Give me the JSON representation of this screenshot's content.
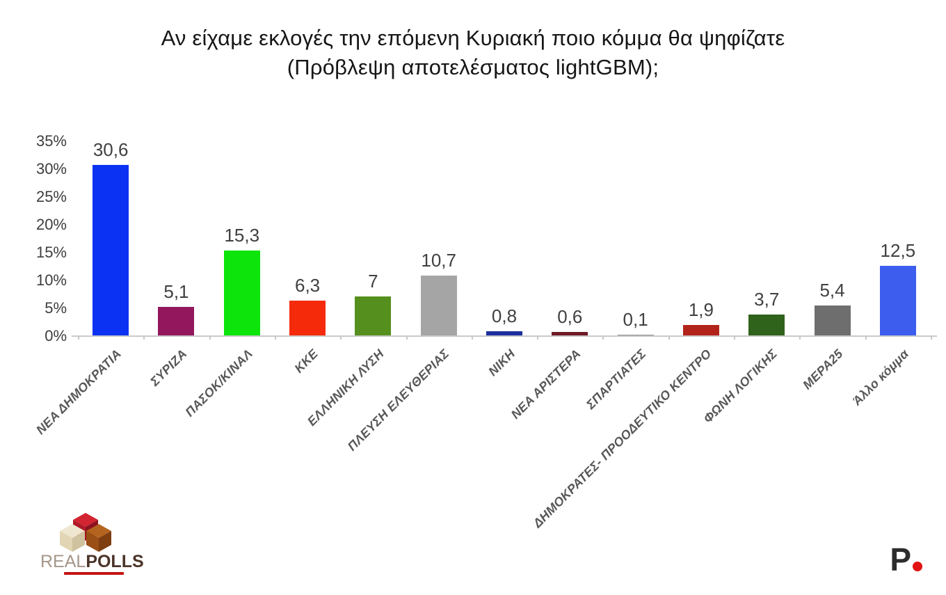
{
  "title": {
    "line1": "Αν είχαμε εκλογές την επόμενη Κυριακή ποιο κόμμα θα ψηφίζατε",
    "line2": "(Πρόβλεψη αποτελέσματος lightGBM);"
  },
  "chart_data": {
    "type": "bar",
    "title": "Αν είχαμε εκλογές την επόμενη Κυριακή ποιο κόμμα θα ψηφίζατε (Πρόβλεψη αποτελέσματος lightGBM);",
    "xlabel": "",
    "ylabel": "",
    "ylim": [
      0,
      35
    ],
    "grid": false,
    "legend": "none",
    "y_ticks": [
      {
        "value": 0,
        "label": "0%"
      },
      {
        "value": 5,
        "label": "5%"
      },
      {
        "value": 10,
        "label": "10%"
      },
      {
        "value": 15,
        "label": "15%"
      },
      {
        "value": 20,
        "label": "20%"
      },
      {
        "value": 25,
        "label": "25%"
      },
      {
        "value": 30,
        "label": "30%"
      },
      {
        "value": 35,
        "label": "35%"
      }
    ],
    "categories": [
      "ΝΕΑ ΔΗΜΟΚΡΑΤΙΑ",
      "ΣΥΡΙΖΑ",
      "ΠΑΣΟΚ/ΚΙΝΑΛ",
      "ΚΚΕ",
      "ΕΛΛΗΝΙΚΗ ΛΥΣΗ",
      "ΠΛΕΥΣΗ ΕΛΕΥΘΕΡΙΑΣ",
      "ΝΙΚΗ",
      "ΝΕΑ ΑΡΙΣΤΕΡΑ",
      "ΣΠΑΡΤΙΑΤΕΣ",
      "ΔΗΜΟΚΡΑΤΕΣ- ΠΡΟΟΔΕΥΤΙΚΟ ΚΕΝΤΡΟ",
      "ΦΩΝΗ ΛΟΓΙΚΗΣ",
      "ΜΕΡΑ25",
      "Άλλο κόμμα"
    ],
    "values": [
      30.6,
      5.1,
      15.3,
      6.3,
      7,
      10.7,
      0.8,
      0.6,
      0.1,
      1.9,
      3.7,
      5.4,
      12.5
    ],
    "value_labels": [
      "30,6",
      "5,1",
      "15,3",
      "6,3",
      "7",
      "10,7",
      "0,8",
      "0,6",
      "0,1",
      "1,9",
      "3,7",
      "5,4",
      "12,5"
    ],
    "bar_colors": [
      "#0b32f2",
      "#92175c",
      "#0ce40c",
      "#f42a0a",
      "#55901e",
      "#a5a5a5",
      "#1c2f9e",
      "#6e1b26",
      "#8a8a8a",
      "#b2231a",
      "#2f621a",
      "#6e6e6e",
      "#3c5ded"
    ]
  },
  "colors": {
    "axis": "#c9c9c9",
    "y_tick_labels": "#3d3d3d",
    "value_labels": "#404040",
    "category_labels": "#575757",
    "title_text": "#161616"
  },
  "footer": {
    "realpolls": {
      "real": "REAL",
      "polls": "POLLS"
    },
    "protagon": {
      "letter": "P"
    }
  }
}
